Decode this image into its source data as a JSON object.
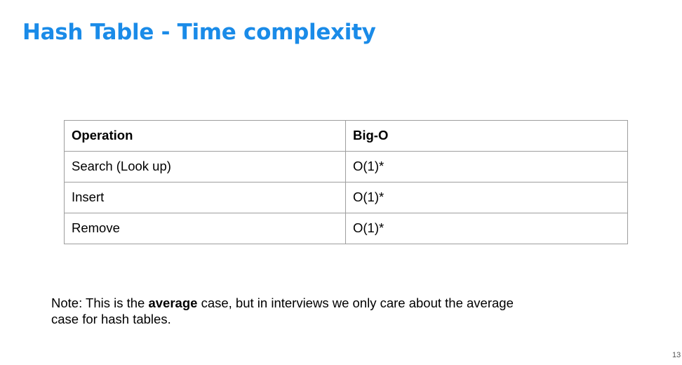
{
  "title": "Hash Table - Time complexity",
  "table": {
    "headers": [
      "Operation",
      "Big-O"
    ],
    "rows": [
      [
        "Search (Look up)",
        "O(1)*"
      ],
      [
        "Insert",
        "O(1)*"
      ],
      [
        "Remove",
        "O(1)*"
      ]
    ]
  },
  "note": {
    "prefix": "Note: This is the ",
    "emphasis": "average",
    "suffix": " case, but in interviews we only care about the average case for hash tables."
  },
  "page_number": "13",
  "colors": {
    "title": "#1a8be8",
    "table_border": "#9e9e9e",
    "text": "#000000"
  }
}
